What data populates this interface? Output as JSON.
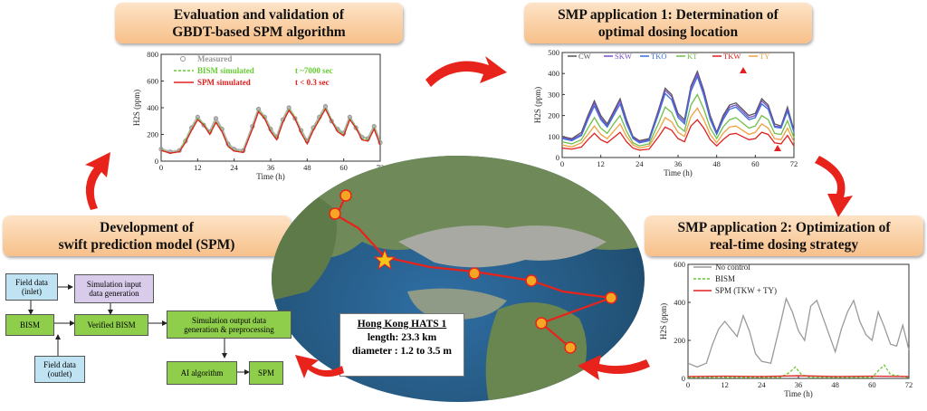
{
  "titles": {
    "top_left": [
      "Evaluation and validation of",
      "GBDT-based SPM algorithm"
    ],
    "top_right": [
      "SMP application 1: Determination of",
      "optimal dosing location"
    ],
    "mid_left": [
      "Development of",
      "swift prediction model (SPM)"
    ],
    "mid_right": [
      "SMP application 2: Optimization of",
      "real-time dosing strategy"
    ]
  },
  "hats": {
    "title": "Hong Kong HATS 1",
    "length": "length: 23.3 km",
    "diameter": "diameter : 1.2 to 3.5 m"
  },
  "flowchart": {
    "field_inlet": [
      "Field data",
      "(inlet)"
    ],
    "sim_input": [
      "Simulation input",
      "data generation"
    ],
    "bism": "BISM",
    "verified_bism": "Verified BISM",
    "sim_output": [
      "Simulation output data",
      "generation & preprocessing"
    ],
    "field_outlet": [
      "Field data",
      "(outlet)"
    ],
    "ai": "AI algorithm",
    "spm": "SPM"
  },
  "colors": {
    "measured": "#999999",
    "bism": "#66cc33",
    "spm": "#e02020",
    "arrow": "#e8231b"
  },
  "chart_data": [
    {
      "type": "line",
      "ylabel": "H2S (ppm)",
      "xlabel": "Time (h)",
      "xlim": [
        0,
        72
      ],
      "ylim": [
        0,
        800
      ],
      "xticks": [
        0,
        12,
        24,
        36,
        48,
        60,
        72
      ],
      "yticks": [
        0,
        200,
        400,
        600,
        800
      ],
      "legend": [
        {
          "name": "Measured",
          "note": ""
        },
        {
          "name": "BISM simulated",
          "note": "t ~7000 sec"
        },
        {
          "name": "SPM simulated",
          "note": "t < 0.3 sec"
        }
      ],
      "series": [
        {
          "name": "Measured",
          "color": "#999999",
          "style": "dots",
          "x": [
            0,
            3,
            6,
            8,
            10,
            12,
            14,
            16,
            18,
            20,
            22,
            24,
            27,
            30,
            32,
            34,
            36,
            38,
            40,
            42,
            44,
            46,
            48,
            50,
            52,
            54,
            56,
            58,
            60,
            62,
            64,
            66,
            68,
            70,
            72
          ],
          "y": [
            90,
            70,
            80,
            150,
            250,
            330,
            270,
            220,
            320,
            240,
            130,
            90,
            80,
            260,
            390,
            330,
            240,
            180,
            310,
            400,
            320,
            230,
            150,
            250,
            330,
            410,
            300,
            240,
            210,
            330,
            250,
            180,
            170,
            260,
            140
          ]
        },
        {
          "name": "BISM simulated",
          "color": "#66cc33",
          "style": "dashed",
          "x": [
            0,
            3,
            6,
            8,
            10,
            12,
            14,
            16,
            18,
            20,
            22,
            24,
            27,
            30,
            32,
            34,
            36,
            38,
            40,
            42,
            44,
            46,
            48,
            50,
            52,
            54,
            56,
            58,
            60,
            62,
            64,
            66,
            68,
            70,
            72
          ],
          "y": [
            85,
            60,
            75,
            160,
            240,
            320,
            280,
            210,
            300,
            230,
            120,
            80,
            70,
            250,
            380,
            330,
            230,
            170,
            300,
            390,
            330,
            220,
            140,
            240,
            320,
            400,
            310,
            230,
            200,
            320,
            260,
            170,
            160,
            250,
            130
          ]
        },
        {
          "name": "SPM simulated",
          "color": "#e02020",
          "style": "solid",
          "x": [
            0,
            3,
            6,
            8,
            10,
            12,
            14,
            16,
            18,
            20,
            22,
            24,
            27,
            30,
            32,
            34,
            36,
            38,
            40,
            42,
            44,
            46,
            48,
            50,
            52,
            54,
            56,
            58,
            60,
            62,
            64,
            66,
            68,
            70,
            72
          ],
          "y": [
            80,
            60,
            70,
            140,
            230,
            310,
            270,
            200,
            290,
            220,
            110,
            75,
            65,
            240,
            370,
            320,
            220,
            160,
            290,
            380,
            320,
            210,
            130,
            230,
            310,
            390,
            300,
            220,
            190,
            310,
            250,
            160,
            150,
            240,
            120
          ]
        }
      ]
    },
    {
      "type": "line",
      "ylabel": "H2S (ppm)",
      "xlabel": "Time (h)",
      "xlim": [
        0,
        72
      ],
      "ylim": [
        0,
        500
      ],
      "xticks": [
        0,
        12,
        24,
        36,
        48,
        60,
        72
      ],
      "yticks": [
        0,
        100,
        200,
        300,
        400,
        500
      ],
      "legend": [
        "CW",
        "SKW",
        "TKO",
        "KT",
        "TKW",
        "TY"
      ],
      "x": [
        0,
        3,
        6,
        8,
        10,
        12,
        14,
        16,
        18,
        20,
        22,
        24,
        27,
        30,
        32,
        34,
        36,
        38,
        40,
        42,
        44,
        46,
        48,
        50,
        52,
        54,
        56,
        58,
        60,
        62,
        64,
        66,
        68,
        70,
        72
      ],
      "series": [
        {
          "name": "CW",
          "color": "#555555",
          "y": [
            100,
            90,
            120,
            200,
            270,
            200,
            160,
            220,
            280,
            180,
            100,
            80,
            90,
            230,
            330,
            300,
            210,
            180,
            340,
            410,
            320,
            200,
            120,
            200,
            250,
            260,
            230,
            200,
            210,
            280,
            250,
            160,
            150,
            240,
            130
          ]
        },
        {
          "name": "SKW",
          "color": "#7a4fc9",
          "y": [
            95,
            85,
            110,
            190,
            260,
            190,
            150,
            210,
            270,
            170,
            95,
            75,
            85,
            220,
            320,
            290,
            200,
            170,
            330,
            400,
            310,
            190,
            115,
            190,
            240,
            250,
            220,
            190,
            200,
            270,
            240,
            150,
            145,
            230,
            125
          ]
        },
        {
          "name": "TKO",
          "color": "#3a6fd8",
          "y": [
            90,
            80,
            105,
            180,
            245,
            180,
            145,
            200,
            255,
            160,
            90,
            70,
            80,
            210,
            305,
            275,
            190,
            160,
            315,
            385,
            295,
            180,
            110,
            180,
            230,
            240,
            210,
            180,
            190,
            255,
            230,
            145,
            140,
            220,
            120
          ]
        },
        {
          "name": "KT",
          "color": "#6fbf4a",
          "y": [
            75,
            65,
            85,
            140,
            190,
            140,
            115,
            160,
            200,
            125,
            70,
            55,
            65,
            165,
            240,
            215,
            150,
            125,
            250,
            300,
            230,
            140,
            90,
            145,
            180,
            190,
            165,
            140,
            150,
            200,
            180,
            115,
            110,
            175,
            95
          ]
        },
        {
          "name": "TKW",
          "color": "#e02020",
          "y": [
            45,
            40,
            50,
            85,
            115,
            85,
            70,
            95,
            120,
            75,
            45,
            35,
            40,
            100,
            145,
            130,
            90,
            75,
            150,
            180,
            140,
            85,
            55,
            85,
            110,
            115,
            100,
            85,
            90,
            120,
            110,
            70,
            65,
            105,
            55
          ]
        },
        {
          "name": "TY",
          "color": "#f0a040",
          "y": [
            60,
            50,
            70,
            110,
            150,
            110,
            90,
            125,
            160,
            100,
            60,
            45,
            55,
            130,
            190,
            170,
            120,
            100,
            195,
            235,
            180,
            110,
            70,
            115,
            145,
            150,
            130,
            110,
            120,
            160,
            140,
            90,
            85,
            140,
            75
          ]
        }
      ]
    },
    {
      "type": "line",
      "ylabel": "H2S (ppm)",
      "xlabel": "Time (h)",
      "xlim": [
        0,
        72
      ],
      "ylim": [
        0,
        600
      ],
      "xticks": [
        0,
        12,
        24,
        36,
        48,
        60,
        72
      ],
      "yticks": [
        0,
        200,
        400,
        600
      ],
      "legend": [
        "No control",
        "BISM",
        "SPM (TKW + TY)"
      ],
      "series": [
        {
          "name": "No control",
          "color": "#9a9a9a",
          "style": "solid",
          "x": [
            0,
            3,
            6,
            8,
            10,
            12,
            14,
            16,
            18,
            20,
            22,
            24,
            27,
            30,
            32,
            34,
            36,
            38,
            40,
            42,
            44,
            46,
            48,
            50,
            52,
            54,
            56,
            58,
            60,
            62,
            64,
            66,
            68,
            70,
            72
          ],
          "y": [
            80,
            60,
            80,
            180,
            260,
            300,
            260,
            220,
            330,
            250,
            130,
            90,
            80,
            280,
            420,
            350,
            250,
            200,
            380,
            410,
            320,
            230,
            140,
            260,
            350,
            410,
            300,
            230,
            200,
            350,
            270,
            180,
            170,
            280,
            150
          ]
        },
        {
          "name": "BISM",
          "color": "#66cc33",
          "style": "dashed",
          "x": [
            0,
            6,
            12,
            18,
            24,
            30,
            33,
            35,
            37,
            40,
            48,
            54,
            60,
            62,
            64,
            66,
            72
          ],
          "y": [
            5,
            5,
            5,
            5,
            5,
            5,
            30,
            60,
            20,
            5,
            5,
            5,
            5,
            40,
            70,
            20,
            5
          ]
        },
        {
          "name": "SPM (TKW + TY)",
          "color": "#e02020",
          "style": "solid",
          "x": [
            0,
            12,
            24,
            36,
            48,
            60,
            72
          ],
          "y": [
            10,
            12,
            10,
            14,
            10,
            12,
            10
          ]
        }
      ]
    }
  ]
}
